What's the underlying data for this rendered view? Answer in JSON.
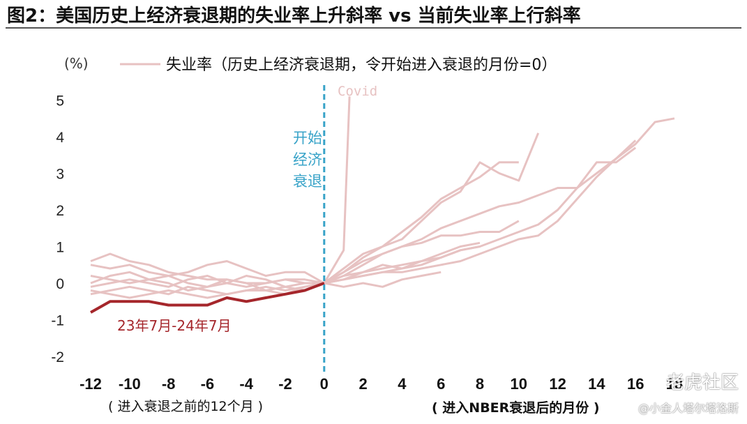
{
  "title": "图2：美国历史上经济衰退期的失业率上升斜率  vs  当前失业率上行斜率",
  "watermarks": {
    "line1": "老虎社区",
    "line2": "@小金人塔尔塔洛斯"
  },
  "colors": {
    "history": "#e7c2c2",
    "current": "#a5262b",
    "divider": "#38a3c8",
    "axis_text": "#222222"
  },
  "chart_data": {
    "type": "line",
    "yunit": "(%)",
    "ylim": [
      -2,
      5
    ],
    "xlim": [
      -12,
      18
    ],
    "y_ticks": [
      5,
      4,
      3,
      2,
      1,
      0,
      -1,
      -2
    ],
    "x_ticks": [
      -12,
      -10,
      -8,
      -6,
      -4,
      -2,
      0,
      2,
      4,
      6,
      8,
      10,
      12,
      14,
      16,
      18
    ],
    "legend": "失业率（历史上经济衰退期，令开始进入衰退的月份=0）",
    "xlabel_left": "( 进入衰退之前的12个月 )",
    "xlabel_right": "( 进入NBER衰退后的月份 )",
    "divider_label": [
      "开始",
      "经济",
      "衰退"
    ],
    "covid_label": "Covid",
    "current_label": "23年7月-24年7月",
    "history_series": [
      {
        "x": [
          -12,
          -11,
          -10,
          -9,
          -8,
          -7,
          -6,
          -5,
          -4,
          -3,
          -2,
          -1,
          0
        ],
        "y": [
          0.6,
          0.8,
          0.6,
          0.5,
          0.3,
          0.2,
          0.1,
          0.1,
          0.0,
          0.0,
          0.1,
          0.0,
          0.0
        ]
      },
      {
        "x": [
          -12,
          -11,
          -10,
          -9,
          -8,
          -7,
          -6,
          -5,
          -4,
          -3,
          -2,
          -1,
          0
        ],
        "y": [
          0.5,
          0.4,
          0.5,
          0.3,
          0.2,
          0.3,
          0.5,
          0.6,
          0.4,
          0.2,
          0.3,
          0.3,
          0.0
        ]
      },
      {
        "x": [
          -12,
          -11,
          -10,
          -9,
          -8,
          -7,
          -6,
          -5,
          -4,
          -3,
          -2,
          -1,
          0
        ],
        "y": [
          0.2,
          0.1,
          0.0,
          0.1,
          0.2,
          0.0,
          -0.1,
          0.0,
          0.2,
          0.1,
          -0.1,
          0.0,
          0.0
        ]
      },
      {
        "x": [
          -12,
          -11,
          -10,
          -9,
          -8,
          -7,
          -6,
          -5,
          -4,
          -3,
          -2,
          -1,
          0
        ],
        "y": [
          -0.1,
          0.0,
          0.1,
          0.0,
          -0.1,
          0.1,
          0.2,
          0.0,
          -0.1,
          0.0,
          0.1,
          0.1,
          0.0
        ]
      },
      {
        "x": [
          -12,
          -11,
          -10,
          -9,
          -8,
          -7,
          -6,
          -5,
          -4,
          -3,
          -2,
          -1,
          0
        ],
        "y": [
          -0.3,
          -0.2,
          -0.1,
          -0.2,
          -0.3,
          -0.1,
          -0.2,
          -0.3,
          -0.2,
          -0.1,
          -0.2,
          -0.1,
          0.0
        ]
      },
      {
        "x": [
          -12,
          -11,
          -10,
          -9,
          -8,
          -7,
          -6,
          -5,
          -4,
          -3,
          -2,
          -1,
          0
        ],
        "y": [
          0.0,
          0.2,
          0.3,
          0.1,
          0.0,
          -0.2,
          -0.1,
          0.1,
          0.0,
          -0.2,
          -0.3,
          -0.1,
          0.0
        ]
      },
      {
        "x": [
          -12,
          -11,
          -10,
          -9,
          -8,
          -7,
          -6,
          -5,
          -4,
          -3,
          -2,
          -1,
          0
        ],
        "y": [
          -0.2,
          -0.3,
          -0.4,
          -0.3,
          -0.2,
          -0.3,
          -0.4,
          -0.3,
          -0.2,
          -0.2,
          -0.1,
          -0.2,
          0.0
        ]
      },
      {
        "x": [
          0,
          1,
          2,
          3,
          4,
          5,
          6,
          7,
          8,
          9,
          10
        ],
        "y": [
          0,
          0.4,
          0.8,
          1.0,
          1.4,
          1.8,
          2.3,
          2.6,
          2.9,
          3.3,
          3.3
        ]
      },
      {
        "x": [
          0,
          1,
          2,
          3,
          4,
          5,
          6,
          7,
          8,
          9,
          10,
          11
        ],
        "y": [
          0,
          0.3,
          0.7,
          1.0,
          1.2,
          1.7,
          2.2,
          2.5,
          3.3,
          3.0,
          2.8,
          4.1
        ]
      },
      {
        "x": [
          0,
          1,
          2,
          3,
          4,
          5,
          6,
          7,
          8,
          9,
          10,
          11,
          12,
          13,
          14,
          15,
          16
        ],
        "y": [
          0,
          0.2,
          0.5,
          0.8,
          1.0,
          1.2,
          1.5,
          1.7,
          1.9,
          2.1,
          2.2,
          2.4,
          2.6,
          2.6,
          3.3,
          3.3,
          3.7
        ]
      },
      {
        "x": [
          0,
          1,
          2,
          3,
          4,
          5,
          6,
          7,
          8,
          9,
          10,
          11,
          12,
          13,
          14,
          15,
          16,
          17,
          18
        ],
        "y": [
          0,
          0.1,
          0.3,
          0.5,
          0.4,
          0.5,
          0.7,
          0.9,
          1.0,
          1.2,
          1.4,
          1.6,
          2.0,
          2.6,
          3.0,
          3.4,
          3.8,
          4.4,
          4.5
        ]
      },
      {
        "x": [
          0,
          1,
          2,
          3,
          4,
          5,
          6,
          7,
          8,
          9,
          10,
          11,
          12,
          13,
          14,
          15,
          16
        ],
        "y": [
          0,
          0.1,
          0.2,
          0.3,
          0.3,
          0.4,
          0.5,
          0.6,
          0.8,
          1.0,
          1.2,
          1.3,
          1.7,
          2.3,
          2.9,
          3.4,
          3.9
        ]
      },
      {
        "x": [
          0,
          1,
          2,
          3,
          4,
          5,
          6,
          7,
          8,
          9,
          10
        ],
        "y": [
          0,
          0.3,
          0.6,
          0.8,
          1.0,
          1.1,
          1.3,
          1.3,
          1.4,
          1.4,
          1.7
        ]
      },
      {
        "x": [
          0,
          1,
          2,
          3,
          4,
          5,
          6,
          7,
          8
        ],
        "y": [
          0,
          0.2,
          0.3,
          0.4,
          0.5,
          0.6,
          0.8,
          1.0,
          1.1
        ]
      },
      {
        "x": [
          0,
          1,
          2,
          3,
          4,
          5,
          6,
          7,
          8
        ],
        "y": [
          0,
          0.1,
          0.2,
          0.3,
          0.4,
          0.6,
          0.7,
          0.9,
          1.0
        ]
      },
      {
        "x": [
          0,
          1,
          2,
          3,
          4,
          5,
          6
        ],
        "y": [
          0,
          -0.1,
          0.0,
          -0.1,
          0.1,
          0.2,
          0.3
        ]
      }
    ],
    "covid_series": {
      "x": [
        0,
        1,
        1.3
      ],
      "y": [
        0,
        0.9,
        5.1
      ]
    },
    "current_series": {
      "x": [
        -12,
        -11,
        -10,
        -9,
        -8,
        -7,
        -6,
        -5,
        -4,
        -3,
        -2,
        -1,
        0
      ],
      "y": [
        -0.8,
        -0.5,
        -0.5,
        -0.5,
        -0.6,
        -0.6,
        -0.6,
        -0.4,
        -0.5,
        -0.4,
        -0.3,
        -0.2,
        0.0
      ]
    }
  }
}
